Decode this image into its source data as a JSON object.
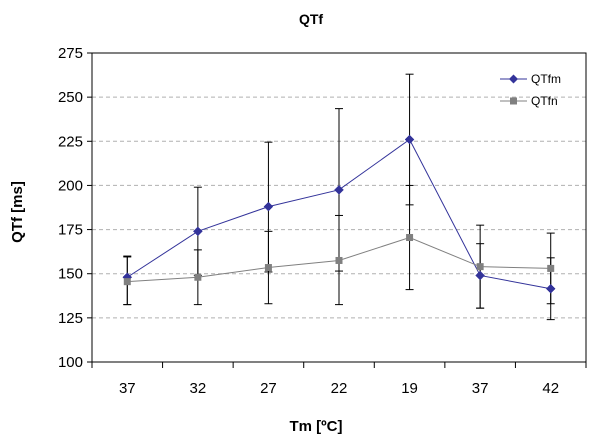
{
  "chart_data": {
    "type": "line",
    "title": "QTf",
    "xlabel": "Tm [ºC]",
    "ylabel": "QTf [ms]",
    "categories": [
      "37",
      "32",
      "27",
      "22",
      "19",
      "37",
      "42"
    ],
    "ylim": [
      100,
      275
    ],
    "yticks": [
      100,
      125,
      150,
      175,
      200,
      225,
      250,
      275
    ],
    "grid": true,
    "legend_position": "top-right",
    "series": [
      {
        "name": "QTfm",
        "color": "#33339a",
        "marker": "diamond",
        "values": [
          148,
          174,
          188,
          197.5,
          226,
          149,
          141.5
        ],
        "error_low": [
          132.5,
          149,
          151,
          151.5,
          189,
          130.5,
          124
        ],
        "error_high": [
          159.5,
          199,
          224.5,
          243.5,
          263,
          167,
          159
        ]
      },
      {
        "name": "QTfn",
        "color": "#808080",
        "marker": "square",
        "values": [
          145.5,
          148,
          153.5,
          157.5,
          170.5,
          154,
          153
        ],
        "error_low": [
          132.5,
          132.5,
          133,
          132.5,
          141,
          130.5,
          133
        ],
        "error_high": [
          160,
          163.5,
          174,
          183,
          200,
          177.5,
          173
        ]
      }
    ]
  }
}
